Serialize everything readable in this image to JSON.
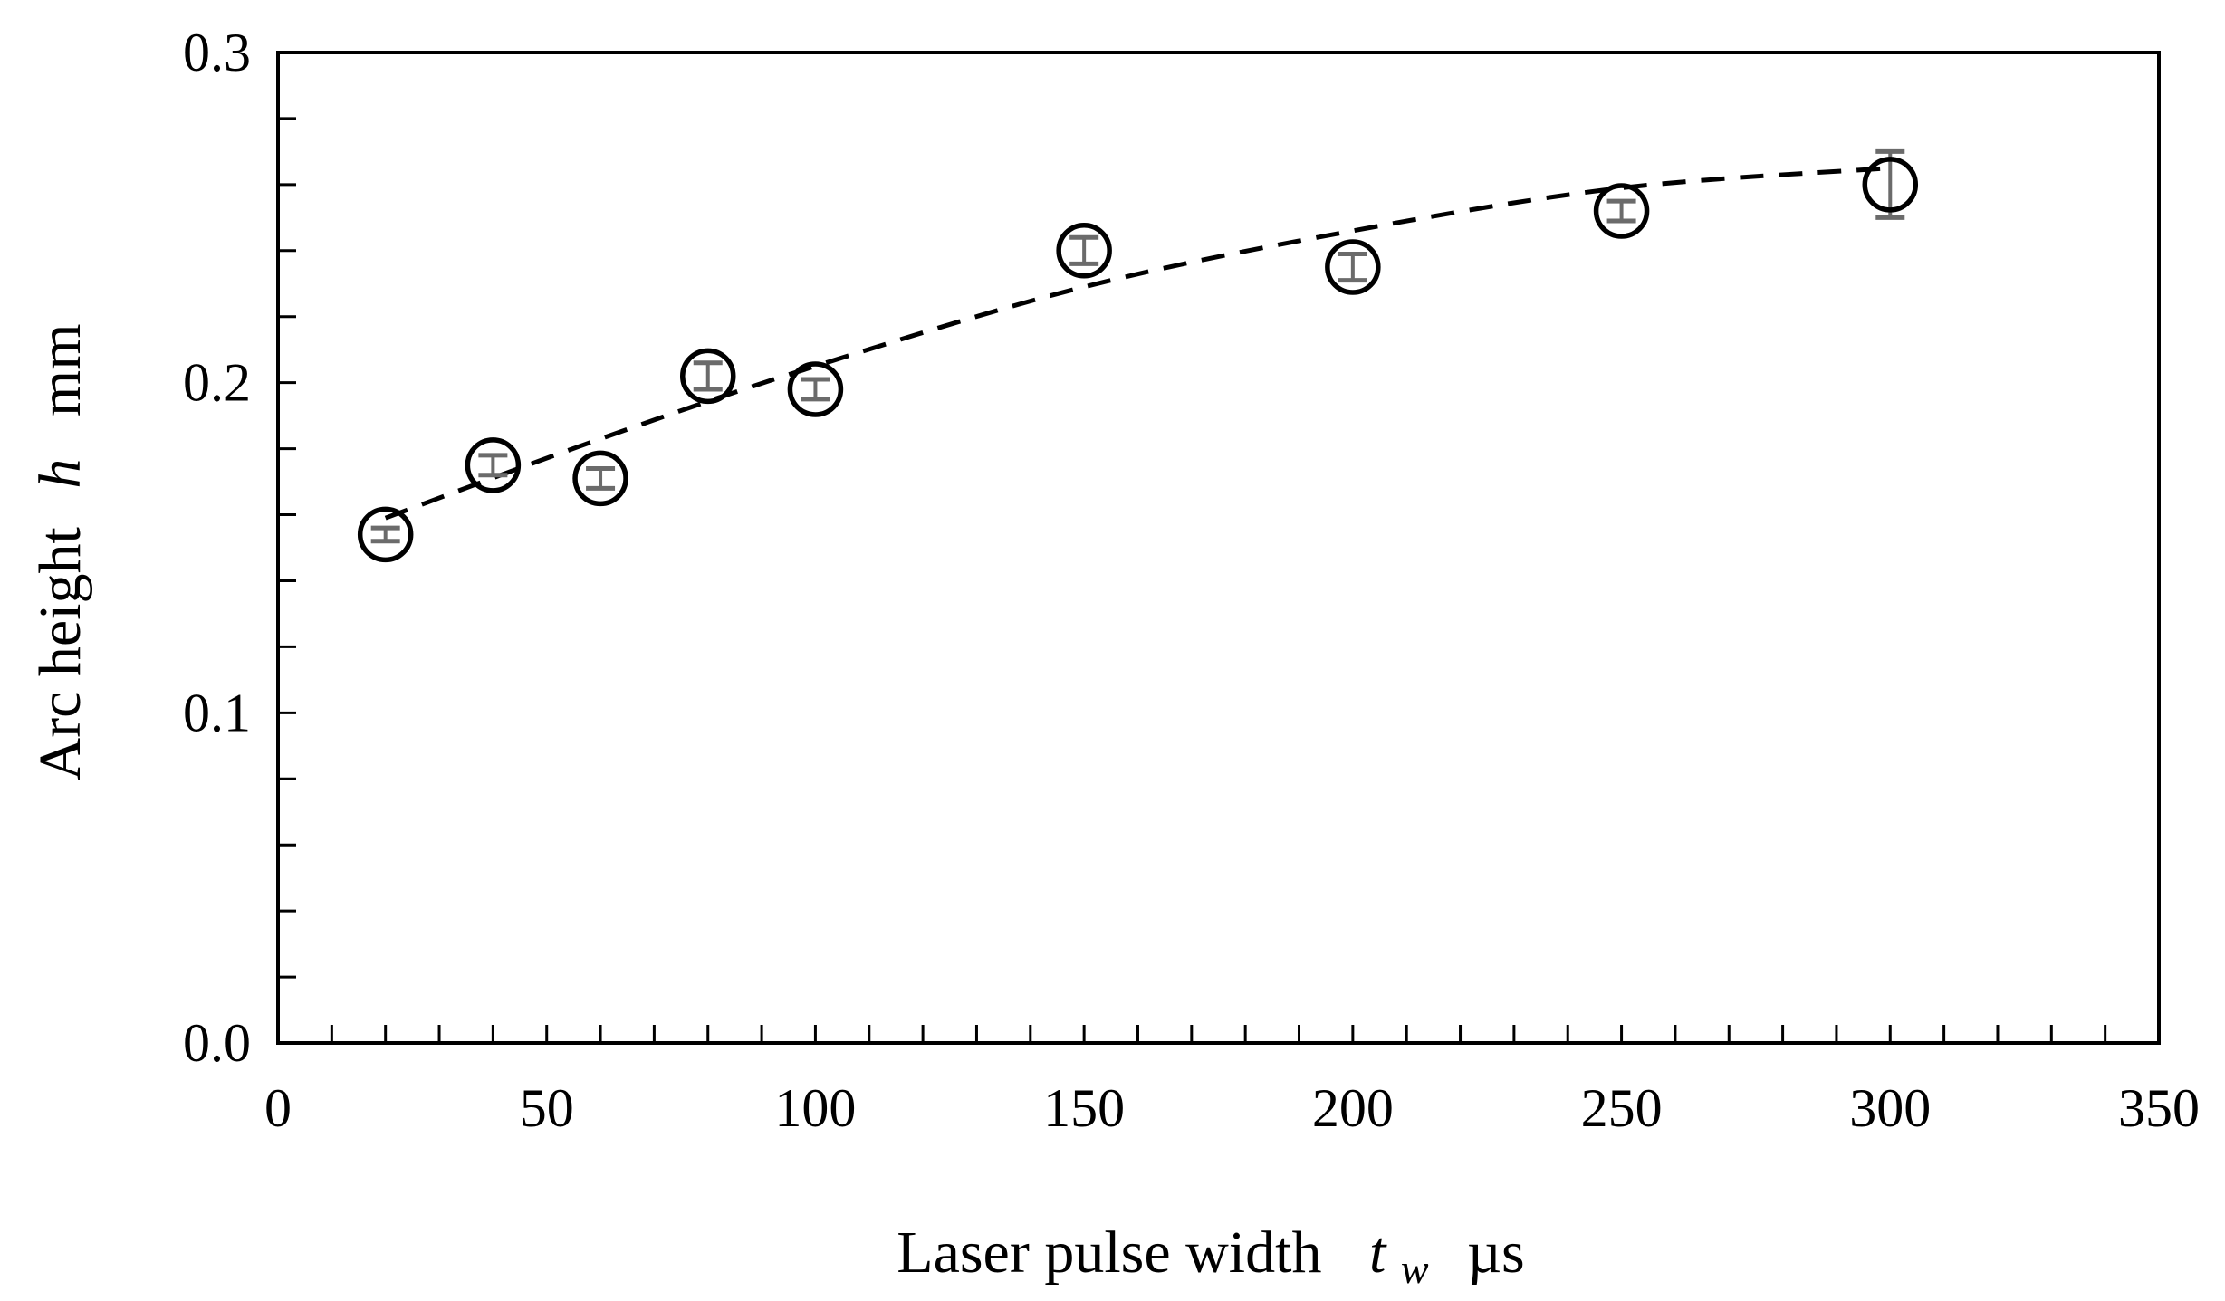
{
  "chart_data": {
    "type": "scatter",
    "title": "",
    "xlabel": {
      "text": "Laser pulse width",
      "symbol": "t",
      "subscript": "w",
      "unit": "µs"
    },
    "ylabel": {
      "text": "Arc height",
      "symbol": "h",
      "unit": "mm"
    },
    "xlim": [
      0,
      350
    ],
    "ylim": [
      0.0,
      0.3
    ],
    "x_ticks": [
      0,
      50,
      100,
      150,
      200,
      250,
      300,
      350
    ],
    "x_tick_labels": [
      "0",
      "50",
      "100",
      "150",
      "200",
      "250",
      "300",
      "350"
    ],
    "x_minor_step": 10,
    "y_ticks": [
      0.0,
      0.1,
      0.2,
      0.3
    ],
    "y_tick_labels": [
      "0.0",
      "0.1",
      "0.2",
      "0.3"
    ],
    "y_minor_step": 0.02,
    "grid": false,
    "legend": "none",
    "series": [
      {
        "marker": "open-circle",
        "x": [
          20,
          40,
          60,
          80,
          100,
          150,
          200,
          250,
          300
        ],
        "y": [
          0.154,
          0.175,
          0.171,
          0.202,
          0.198,
          0.24,
          0.235,
          0.252,
          0.26
        ],
        "yerr": [
          0.002,
          0.003,
          0.003,
          0.004,
          0.003,
          0.004,
          0.004,
          0.003,
          0.01
        ]
      }
    ],
    "trendline": {
      "style": "dashed",
      "x": [
        20,
        60,
        100,
        150,
        200,
        250,
        300
      ],
      "y": [
        0.159,
        0.183,
        0.205,
        0.229,
        0.246,
        0.259,
        0.265
      ]
    },
    "colors": {
      "marker": "#000000",
      "error_bar": "#6b6b6b",
      "axis": "#000000",
      "trendline": "#000000"
    }
  }
}
